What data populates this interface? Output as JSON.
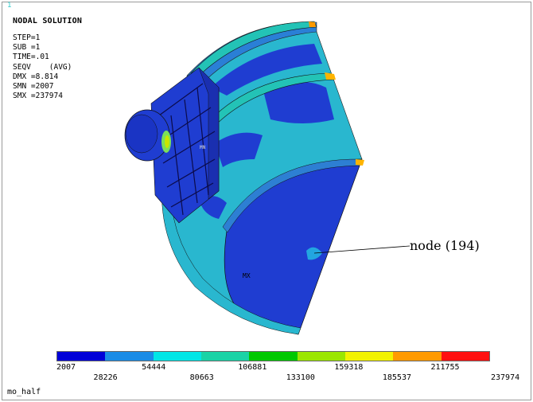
{
  "window": {
    "number": "1"
  },
  "plot": {
    "title": "NODAL SOLUTION",
    "info": [
      "STEP=1",
      "SUB =1",
      "TIME=.01",
      "SEQV    (AVG)",
      "DMX =8.814",
      "SMN =2007",
      "SMX =237974"
    ],
    "annotation": "node (194)",
    "origin_marker": "MX",
    "model_name": "mo_half"
  },
  "legend": {
    "colors": [
      "#0000d8",
      "#1a8ce6",
      "#00e6e6",
      "#1ad3a6",
      "#00c800",
      "#9be600",
      "#f2f200",
      "#ff9a00",
      "#ff1010"
    ],
    "ticks_top": [
      "2007",
      "54444",
      "106881",
      "159318",
      "211755"
    ],
    "ticks_bottom": [
      "28226",
      "80663",
      "133100",
      "185537",
      "237974"
    ]
  },
  "colors": {
    "low_stress": "#1f3dd1",
    "mid_low": "#1f9be0",
    "mid": "#3bc9c4",
    "edge": "#2d7fd3"
  }
}
